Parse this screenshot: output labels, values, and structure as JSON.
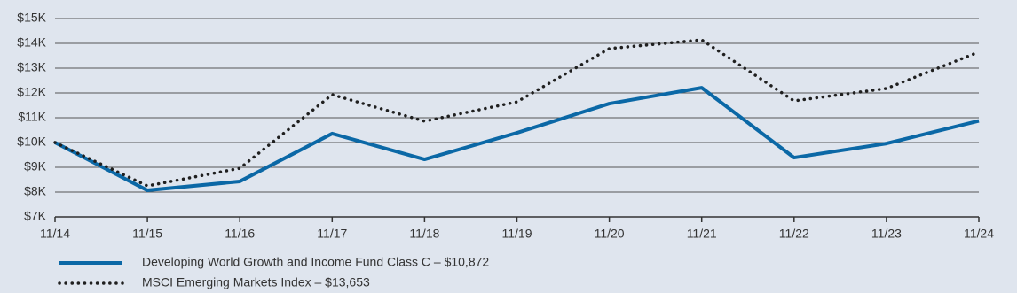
{
  "chart_data": {
    "type": "line",
    "categories": [
      "11/14",
      "11/15",
      "11/16",
      "11/17",
      "11/18",
      "11/19",
      "11/20",
      "11/21",
      "11/22",
      "11/23",
      "11/24"
    ],
    "series": [
      {
        "name": "Developing World Growth and Income Fund Class C – $10,872",
        "color": "#0b68a6",
        "style": "solid",
        "values": [
          10000,
          8070,
          8430,
          10360,
          9320,
          10390,
          11570,
          12210,
          9390,
          9960,
          10872
        ]
      },
      {
        "name": "MSCI Emerging Markets Index – $13,653",
        "color": "#1f1f1f",
        "style": "dotted",
        "values": [
          10000,
          8250,
          8960,
          11930,
          10860,
          11640,
          13790,
          14140,
          11680,
          12180,
          13653
        ]
      }
    ],
    "ylim": [
      7000,
      15000
    ],
    "yticks": [
      {
        "value": 7000,
        "label": "$7K"
      },
      {
        "value": 8000,
        "label": "$8K"
      },
      {
        "value": 9000,
        "label": "$9K"
      },
      {
        "value": 10000,
        "label": "$10K"
      },
      {
        "value": 11000,
        "label": "$11K"
      },
      {
        "value": 12000,
        "label": "$12K"
      },
      {
        "value": 13000,
        "label": "$13K"
      },
      {
        "value": 14000,
        "label": "$14K"
      },
      {
        "value": 15000,
        "label": "$15K"
      }
    ],
    "grid": true
  }
}
